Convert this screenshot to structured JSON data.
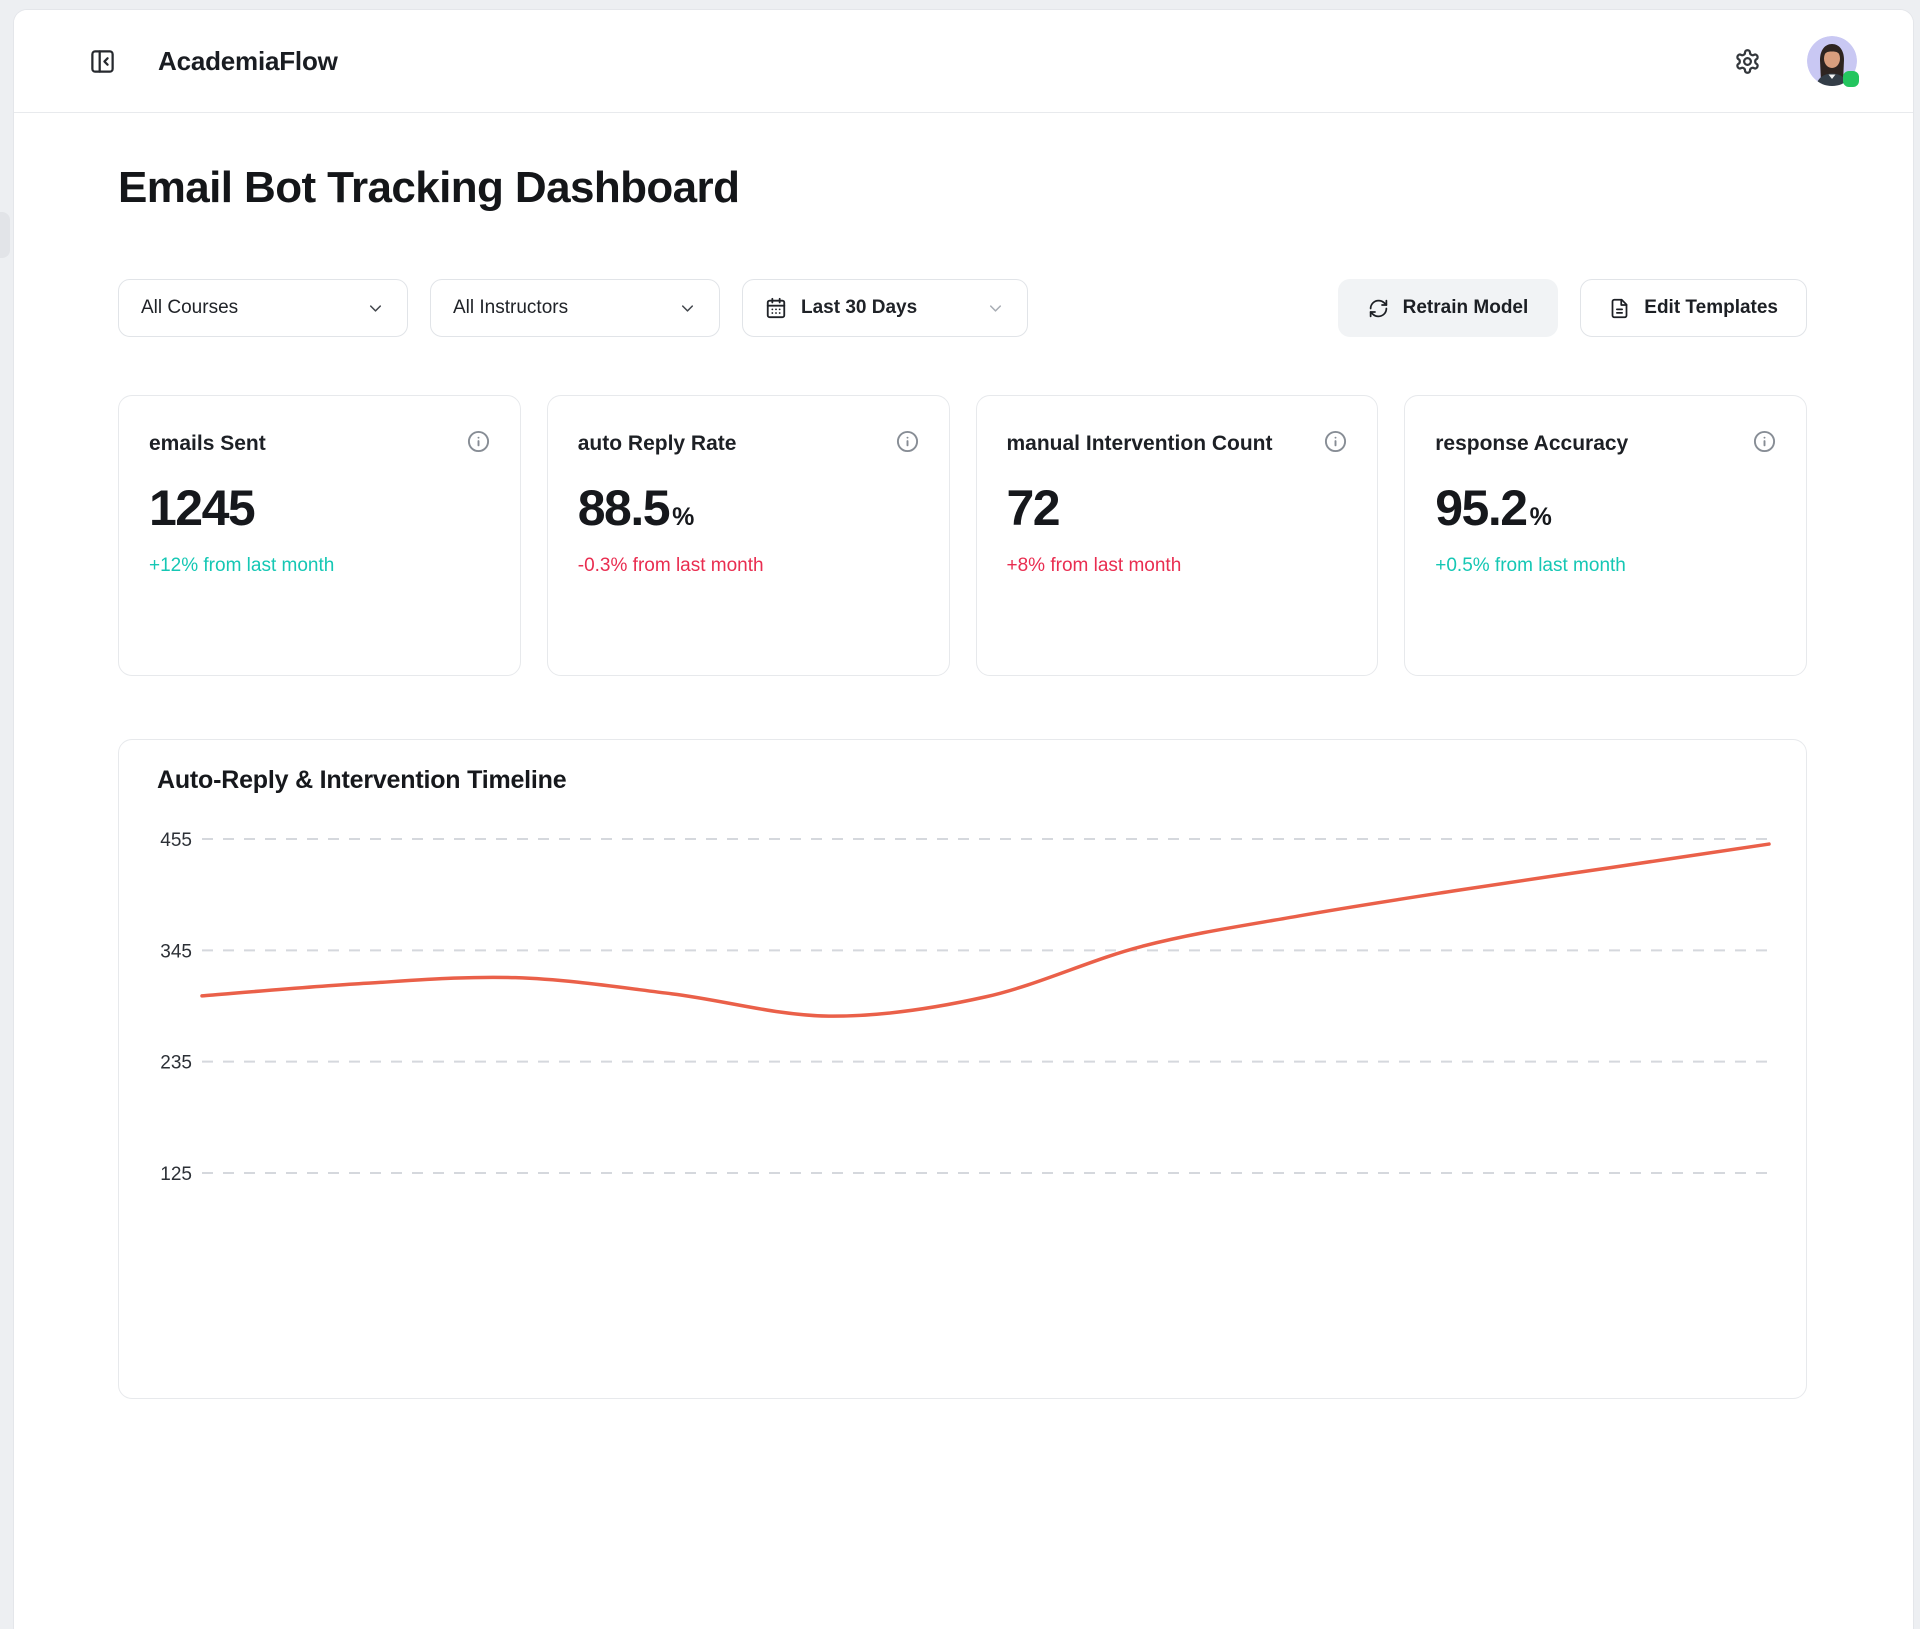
{
  "header": {
    "brand": "AcademiaFlow"
  },
  "page": {
    "title": "Email Bot Tracking Dashboard"
  },
  "filters": {
    "courses": {
      "label": "All Courses"
    },
    "instructors": {
      "label": "All Instructors"
    },
    "date_range": {
      "label": "Last 30 Days",
      "icon": "calendar"
    }
  },
  "actions": {
    "retrain": {
      "label": "Retrain Model",
      "icon": "refresh"
    },
    "edit_templates": {
      "label": "Edit Templates",
      "icon": "file-text"
    }
  },
  "stats": [
    {
      "label": "emails Sent",
      "value": "1245",
      "suffix": "",
      "delta": "+12% from last month",
      "delta_color": "positive"
    },
    {
      "label": "auto Reply Rate",
      "value": "88.5",
      "suffix": "%",
      "delta": "-0.3% from last month",
      "delta_color": "negative"
    },
    {
      "label": "manual Intervention Count",
      "value": "72",
      "suffix": "",
      "delta": "+8% from last month",
      "delta_color": "negative"
    },
    {
      "label": "response Accuracy",
      "value": "95.2",
      "suffix": "%",
      "delta": "+0.5% from last month",
      "delta_color": "positive"
    }
  ],
  "colors": {
    "positive": "#15c7b4",
    "negative": "#e92d50",
    "line": "#ea6049"
  },
  "chart_data": {
    "type": "line",
    "title": "Auto-Reply & Intervention Timeline",
    "y_ticks": [
      455,
      345,
      235,
      125
    ],
    "ylim": [
      125,
      455
    ],
    "grid": "dashed-horizontal",
    "legend": "none",
    "x_axis_labels": "cut off below viewport",
    "line_color": "#ea6049",
    "values": [
      300,
      312,
      318,
      302,
      280,
      299,
      349,
      379,
      404,
      427,
      450
    ]
  }
}
